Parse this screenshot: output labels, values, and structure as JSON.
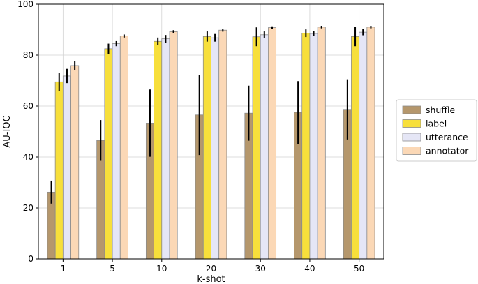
{
  "chart_data": {
    "type": "bar",
    "title": "",
    "xlabel": "k-shot",
    "ylabel": "AU-IOC",
    "ylim": [
      0,
      100
    ],
    "yticks": [
      0,
      20,
      40,
      60,
      80,
      100
    ],
    "categories": [
      "1",
      "5",
      "10",
      "20",
      "30",
      "40",
      "50"
    ],
    "grid": true,
    "legend_position": "right",
    "series": [
      {
        "name": "shuffle",
        "color": "#b5976c",
        "values": [
          26.2,
          46.5,
          53.3,
          56.5,
          57.2,
          57.5,
          58.7
        ],
        "errors": [
          4.5,
          8.0,
          13.2,
          15.7,
          10.8,
          12.3,
          11.8
        ]
      },
      {
        "name": "label",
        "color": "#f7df3b",
        "values": [
          69.5,
          82.5,
          85.4,
          87.3,
          87.2,
          88.6,
          87.3
        ],
        "errors": [
          3.6,
          2.0,
          1.5,
          2.0,
          3.7,
          1.5,
          3.8
        ]
      },
      {
        "name": "utterance",
        "color": "#e5e6f6",
        "values": [
          71.8,
          84.5,
          86.4,
          86.8,
          88.0,
          88.5,
          89.0
        ],
        "errors": [
          2.8,
          1.0,
          1.5,
          1.5,
          1.3,
          1.0,
          1.2
        ]
      },
      {
        "name": "annotator",
        "color": "#fbd8b6",
        "values": [
          75.9,
          87.5,
          89.2,
          89.8,
          90.8,
          91.0,
          91.0
        ],
        "errors": [
          1.8,
          0.6,
          0.6,
          0.6,
          0.5,
          0.5,
          0.5
        ]
      }
    ]
  }
}
